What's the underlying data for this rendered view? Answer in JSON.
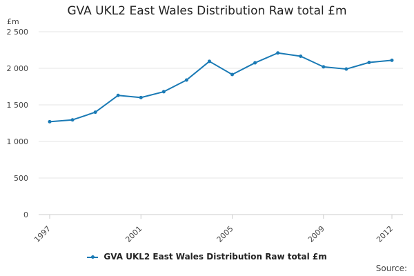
{
  "chart_data": {
    "type": "line",
    "title": "GVA UKL2 East Wales Distribution Raw total £m",
    "ylabel": "£m",
    "xlabel": "",
    "x": [
      1997,
      1998,
      1999,
      2000,
      2001,
      2002,
      2003,
      2004,
      2005,
      2006,
      2007,
      2008,
      2009,
      2010,
      2011,
      2012
    ],
    "series": [
      {
        "name": "GVA UKL2 East Wales Distribution Raw total £m",
        "color": "#1a7ab5",
        "values": [
          1270,
          1295,
          1400,
          1630,
          1600,
          1680,
          1840,
          2095,
          1915,
          2075,
          2210,
          2165,
          2020,
          1990,
          2080,
          2110
        ]
      }
    ],
    "ylim": [
      0,
      2500
    ],
    "yticks": [
      0,
      500,
      1000,
      1500,
      2000,
      2500
    ],
    "ytick_labels": [
      "0",
      "500",
      "1 000",
      "1 500",
      "2 000",
      "2 500"
    ],
    "xticks": [
      "1997",
      "2001",
      "2005",
      "2009",
      "2012"
    ],
    "grid": true,
    "legend_position": "bottom"
  },
  "source_label": "Source:"
}
